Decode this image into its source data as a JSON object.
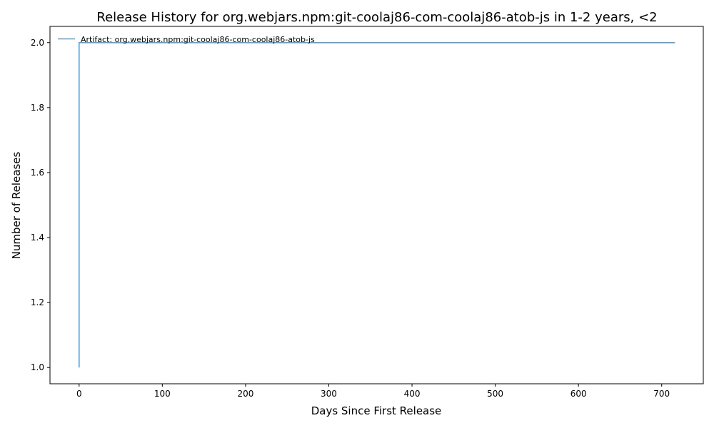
{
  "chart_data": {
    "type": "line",
    "title": "Release History for org.webjars.npm:git-coolaj86-com-coolaj86-atob-js in 1-2 years, <2",
    "xlabel": "Days Since First Release",
    "ylabel": "Number of Releases",
    "xlim": [
      -35,
      750
    ],
    "ylim": [
      0.95,
      2.05
    ],
    "xticks": [
      0,
      100,
      200,
      300,
      400,
      500,
      600,
      700
    ],
    "yticks": [
      1.0,
      1.2,
      1.4,
      1.6,
      1.8,
      2.0
    ],
    "grid": false,
    "legend_position": "upper-left",
    "series": [
      {
        "name": "Artifact: org.webjars.npm:git-coolaj86-com-coolaj86-atob-js",
        "color": "#5aa0d0",
        "step": "post",
        "x": [
          0,
          0,
          716
        ],
        "y": [
          1,
          2,
          2
        ]
      }
    ]
  }
}
